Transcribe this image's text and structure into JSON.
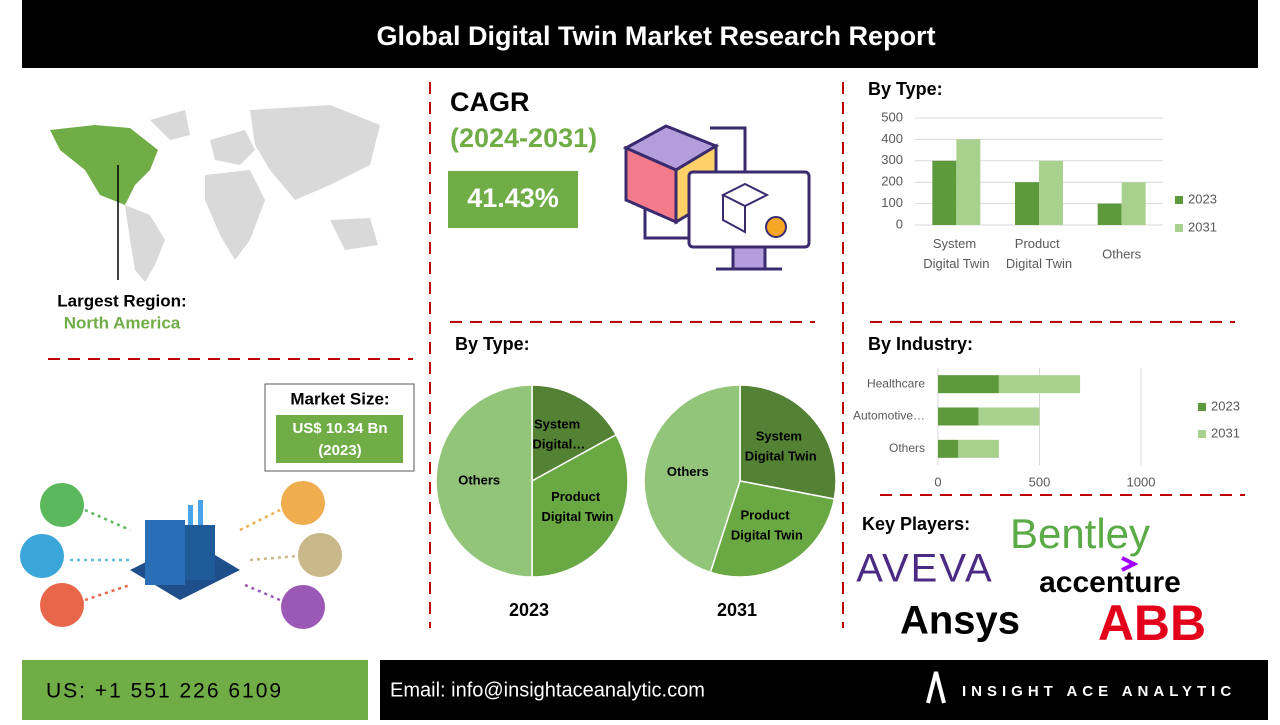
{
  "header": {
    "title": "Global Digital Twin Market Research Report"
  },
  "region": {
    "label": "Largest Region:",
    "value": "North America"
  },
  "cagr": {
    "label": "CAGR",
    "period": "(2024-2031)",
    "value": "41.43%"
  },
  "market_size": {
    "label": "Market Size:",
    "value": "US$ 10.34 Bn",
    "year": "(2023)"
  },
  "key_players": {
    "label": "Key Players:",
    "logos": [
      "Bentley",
      "AVEVA",
      "accenture",
      "Ansys",
      "ABB"
    ]
  },
  "footer": {
    "phone": "US: +1 551 226 6109",
    "email": "Email: info@insightaceanalytic.com",
    "brand": "INSIGHT ACE ANALYTIC"
  },
  "chart_data": [
    {
      "type": "bar",
      "title": "By Type:",
      "categories": [
        "System Digital Twin",
        "Product Digital Twin",
        "Others"
      ],
      "series": [
        {
          "name": "2023",
          "color": "#5e9a3c",
          "values": [
            300,
            200,
            100
          ]
        },
        {
          "name": "2031",
          "color": "#a9d18e",
          "values": [
            400,
            300,
            200
          ]
        }
      ],
      "ylim": [
        0,
        500
      ],
      "yticks": [
        0,
        100,
        200,
        300,
        400,
        500
      ],
      "grid": true,
      "legend": "right"
    },
    {
      "type": "pie",
      "title": "By Type:",
      "xlabel": "2023",
      "categories": [
        "System Digital…",
        "Product Digital Twin",
        "Others"
      ],
      "values": [
        17,
        33,
        50
      ],
      "colors": [
        "#548235",
        "#6aa843",
        "#92c47a"
      ]
    },
    {
      "type": "pie",
      "xlabel": "2031",
      "categories": [
        "System Digital Twin",
        "Product Digital Twin",
        "Others"
      ],
      "values": [
        28,
        27,
        45
      ],
      "colors": [
        "#548235",
        "#6aa843",
        "#92c47a"
      ]
    },
    {
      "type": "hbar",
      "title": "By Industry:",
      "categories": [
        "Healthcare",
        "Automotive…",
        "Others"
      ],
      "series": [
        {
          "name": "2023",
          "color": "#5e9a3c",
          "values": [
            300,
            200,
            100
          ]
        },
        {
          "name": "2031",
          "color": "#a9d18e",
          "values": [
            400,
            300,
            200
          ]
        }
      ],
      "stacked": true,
      "xlim": [
        0,
        1000
      ],
      "xticks": [
        0,
        500,
        1000
      ],
      "grid": true,
      "legend": "right"
    }
  ]
}
